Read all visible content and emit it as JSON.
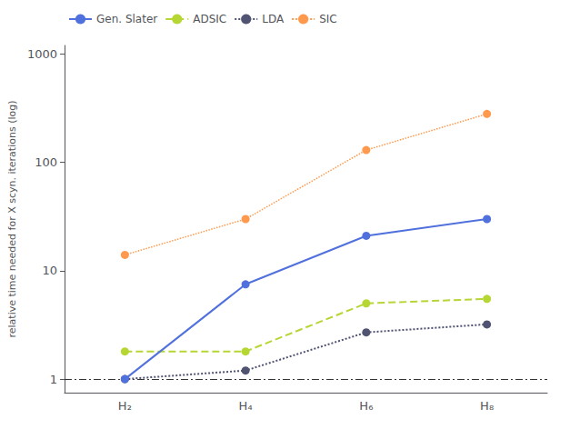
{
  "chart_data": {
    "type": "line",
    "categories": [
      "H₂",
      "H₄",
      "H₆",
      "H₈"
    ],
    "series": [
      {
        "name": "Gen. Slater",
        "values": [
          1.0,
          7.5,
          21.0,
          30.0
        ],
        "line_style": "solid",
        "marker": "circle"
      },
      {
        "name": "ADSIC",
        "values": [
          1.8,
          1.8,
          5.0,
          5.5
        ],
        "line_style": "dashed",
        "marker": "circle"
      },
      {
        "name": "LDA",
        "values": [
          1.0,
          1.2,
          2.7,
          3.2
        ],
        "line_style": "dotted",
        "marker": "circle"
      },
      {
        "name": "SIC",
        "values": [
          14.0,
          30.0,
          130.0,
          280.0
        ],
        "line_style": "dotted",
        "marker": "circle"
      }
    ],
    "ylabel": "relative time needed for X scyn. iterations (log)",
    "log": "y",
    "ylim": [
      0.75,
      1200
    ],
    "yticks": [
      1,
      10,
      100,
      1000
    ],
    "hline": {
      "value": 1.0,
      "line_style": "dashdot"
    },
    "grid": false,
    "legend": "upper left"
  }
}
